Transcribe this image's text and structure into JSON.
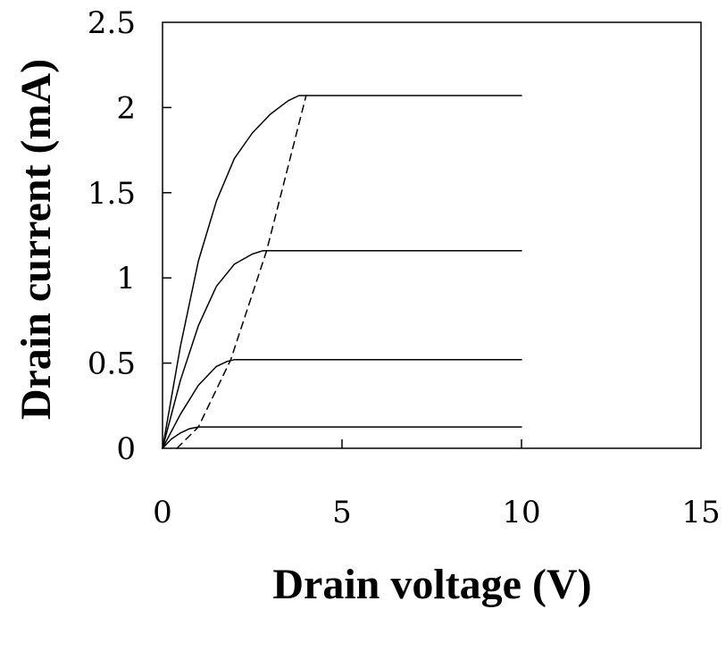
{
  "chart_data": {
    "type": "line",
    "xlabel": "Drain voltage (V)",
    "ylabel": "Drain current (mA)",
    "xlim": [
      0,
      15
    ],
    "ylim": [
      0,
      2.5
    ],
    "x_ticks": [
      "0",
      "5",
      "10",
      "15"
    ],
    "y_ticks": [
      "0",
      "0.5",
      "1",
      "1.5",
      "2",
      "2.5"
    ],
    "grid": false,
    "legend": "none",
    "series": [
      {
        "style": "solid",
        "x": [
          0,
          0.25,
          0.5,
          0.75,
          1.0,
          1.5,
          2,
          4,
          6,
          8,
          10
        ],
        "y": [
          0,
          0.055,
          0.09,
          0.115,
          0.125,
          0.125,
          0.125,
          0.125,
          0.125,
          0.125,
          0.125
        ]
      },
      {
        "style": "solid",
        "x": [
          0,
          0.5,
          1.0,
          1.5,
          1.8,
          2,
          3,
          4,
          6,
          8,
          10
        ],
        "y": [
          0,
          0.2,
          0.37,
          0.48,
          0.51,
          0.52,
          0.52,
          0.52,
          0.52,
          0.52,
          0.52
        ]
      },
      {
        "style": "solid",
        "x": [
          0,
          0.5,
          1.0,
          1.5,
          2.0,
          2.5,
          2.8,
          3,
          4,
          6,
          8,
          10
        ],
        "y": [
          0,
          0.4,
          0.72,
          0.95,
          1.08,
          1.14,
          1.16,
          1.16,
          1.16,
          1.16,
          1.16,
          1.16
        ]
      },
      {
        "style": "solid",
        "x": [
          0,
          0.5,
          1.0,
          1.5,
          2.0,
          2.5,
          3.0,
          3.5,
          3.8,
          4,
          6,
          8,
          10
        ],
        "y": [
          0,
          0.6,
          1.1,
          1.45,
          1.7,
          1.85,
          1.96,
          2.04,
          2.07,
          2.07,
          2.07,
          2.07,
          2.07
        ]
      },
      {
        "style": "dashed",
        "x": [
          0.4,
          1.0,
          1.9,
          2.9,
          4.0
        ],
        "y": [
          0,
          0.125,
          0.52,
          1.16,
          2.07
        ]
      }
    ]
  }
}
